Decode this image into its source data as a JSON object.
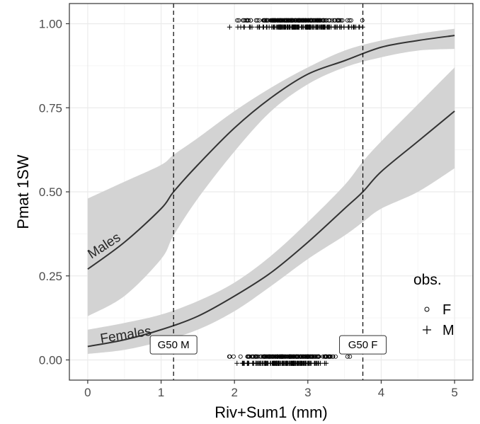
{
  "chart_data": {
    "type": "line",
    "xlabel": "Riv+Sum1 (mm)",
    "ylabel": "Pmat 1SW",
    "xlim": [
      -0.25,
      5.25
    ],
    "ylim": [
      -0.06,
      1.06
    ],
    "x_ticks": [
      0,
      1,
      2,
      3,
      4,
      5
    ],
    "y_ticks": [
      0.0,
      0.25,
      0.5,
      0.75,
      1.0
    ],
    "x_tick_labels": [
      "0",
      "1",
      "2",
      "3",
      "4",
      "5"
    ],
    "y_tick_labels": [
      "0.00",
      "0.25",
      "0.50",
      "0.75",
      "1.00"
    ],
    "grid": true,
    "series": [
      {
        "name": "Males",
        "x": [
          0,
          0.5,
          1,
          1.17,
          1.5,
          2,
          2.5,
          3,
          3.5,
          4,
          4.5,
          5
        ],
        "y": [
          0.27,
          0.35,
          0.45,
          0.5,
          0.58,
          0.69,
          0.78,
          0.85,
          0.89,
          0.93,
          0.95,
          0.965
        ],
        "lower": [
          0.13,
          0.19,
          0.3,
          0.37,
          0.48,
          0.62,
          0.74,
          0.82,
          0.87,
          0.9,
          0.92,
          0.925
        ],
        "upper": [
          0.48,
          0.53,
          0.58,
          0.61,
          0.66,
          0.74,
          0.81,
          0.87,
          0.92,
          0.95,
          0.97,
          0.985
        ]
      },
      {
        "name": "Females",
        "x": [
          0,
          0.5,
          1,
          1.5,
          2,
          2.5,
          3,
          3.5,
          3.75,
          4,
          4.5,
          5
        ],
        "y": [
          0.04,
          0.06,
          0.09,
          0.13,
          0.19,
          0.26,
          0.35,
          0.45,
          0.5,
          0.56,
          0.65,
          0.74
        ],
        "lower": [
          0.018,
          0.03,
          0.055,
          0.09,
          0.145,
          0.22,
          0.3,
          0.37,
          0.41,
          0.45,
          0.5,
          0.57
        ],
        "upper": [
          0.09,
          0.11,
          0.135,
          0.175,
          0.23,
          0.31,
          0.41,
          0.52,
          0.59,
          0.65,
          0.76,
          0.87
        ]
      }
    ],
    "curve_labels": [
      "Males",
      "Females"
    ],
    "vlines": [
      {
        "x": 1.17,
        "label": "G50 M"
      },
      {
        "x": 3.75,
        "label": "G50 F"
      }
    ],
    "observations": {
      "F_top": {
        "y": 1.01,
        "x_min": 1.8,
        "x_max": 3.85
      },
      "M_top": {
        "y": 0.99,
        "x_min": 1.88,
        "x_max": 3.95
      },
      "F_bottom": {
        "y": 0.01,
        "x_min": 1.8,
        "x_max": 3.75
      },
      "M_bottom": {
        "y": -0.01,
        "x_min": 1.88,
        "x_max": 3.45
      }
    },
    "legend": {
      "title": "obs.",
      "position": "bottom-right",
      "entries": [
        {
          "symbol": "circle",
          "label": "F"
        },
        {
          "symbol": "plus",
          "label": "M"
        }
      ]
    },
    "colors": {
      "panel_bg": "#ffffff",
      "panel_border": "#333333",
      "grid_major": "#ebebeb",
      "grid_minor": "#f5f5f5",
      "ribbon": "#d3d3d3",
      "line": "#333333",
      "points": "#000000"
    }
  }
}
